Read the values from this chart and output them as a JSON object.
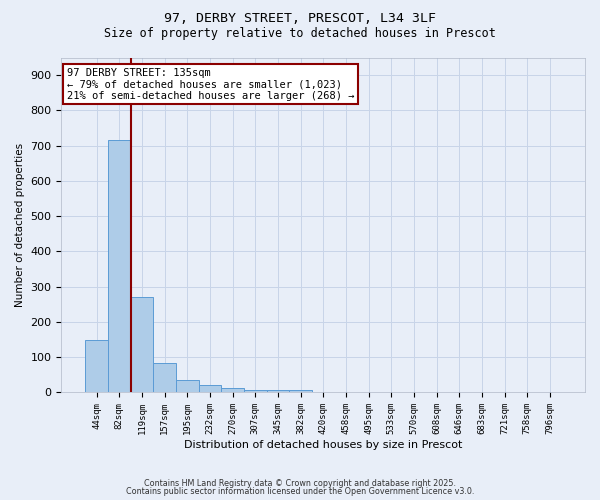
{
  "title_line1": "97, DERBY STREET, PRESCOT, L34 3LF",
  "title_line2": "Size of property relative to detached houses in Prescot",
  "xlabel": "Distribution of detached houses by size in Prescot",
  "ylabel": "Number of detached properties",
  "bar_labels": [
    "44sqm",
    "82sqm",
    "119sqm",
    "157sqm",
    "195sqm",
    "232sqm",
    "270sqm",
    "307sqm",
    "345sqm",
    "382sqm",
    "420sqm",
    "458sqm",
    "495sqm",
    "533sqm",
    "570sqm",
    "608sqm",
    "646sqm",
    "683sqm",
    "721sqm",
    "758sqm",
    "796sqm"
  ],
  "bar_values": [
    150,
    715,
    270,
    85,
    35,
    20,
    13,
    8,
    8,
    7,
    0,
    0,
    0,
    0,
    0,
    0,
    0,
    0,
    0,
    0,
    0
  ],
  "bar_color": "#aecce8",
  "bar_edge_color": "#5b9bd5",
  "bar_width": 1.0,
  "vline_color": "#8b0000",
  "annotation_text": "97 DERBY STREET: 135sqm\n← 79% of detached houses are smaller (1,023)\n21% of semi-detached houses are larger (268) →",
  "annotation_box_color": "#8b0000",
  "annotation_bg_color": "#ffffff",
  "ylim": [
    0,
    950
  ],
  "yticks": [
    0,
    100,
    200,
    300,
    400,
    500,
    600,
    700,
    800,
    900
  ],
  "grid_color": "#c8d4e8",
  "background_color": "#e8eef8",
  "footer_line1": "Contains HM Land Registry data © Crown copyright and database right 2025.",
  "footer_line2": "Contains public sector information licensed under the Open Government Licence v3.0."
}
